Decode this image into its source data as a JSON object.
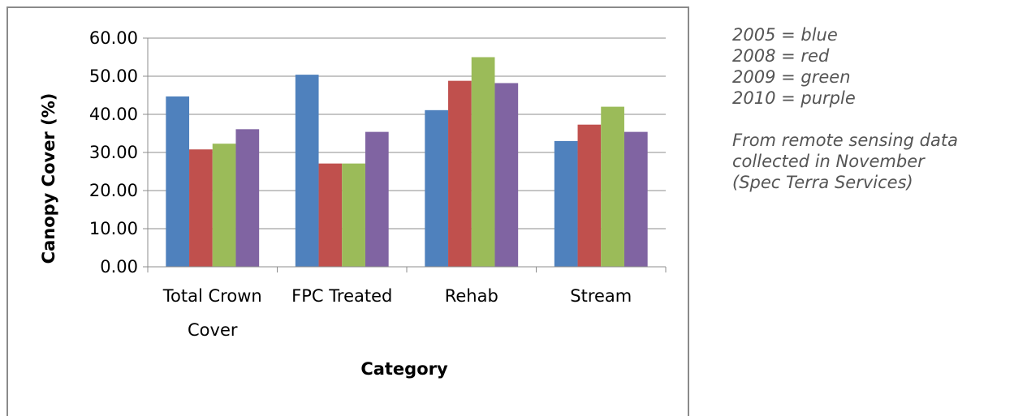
{
  "chart_data": {
    "type": "bar",
    "categories": [
      "Total Crown Cover",
      "FPC Treated",
      "Rehab",
      "Stream"
    ],
    "category_label_lines": [
      [
        "Total Crown",
        "Cover"
      ],
      [
        "FPC Treated"
      ],
      [
        "Rehab"
      ],
      [
        "Stream"
      ]
    ],
    "series": [
      {
        "values": [
          44.7,
          50.4,
          41.1,
          33.0
        ],
        "color": "#4f81bd"
      },
      {
        "values": [
          30.8,
          27.1,
          48.8,
          37.3
        ],
        "color": "#c0504d"
      },
      {
        "values": [
          32.3,
          27.1,
          55.0,
          42.0
        ],
        "color": "#9bbb59"
      },
      {
        "values": [
          36.1,
          35.4,
          48.2,
          35.4
        ],
        "color": "#8064a2"
      }
    ],
    "xlabel": "Category",
    "ylabel": "Canopy Cover (%)",
    "ylim": [
      0,
      60
    ],
    "yticks": [
      0,
      10,
      20,
      30,
      40,
      50,
      60
    ],
    "ytick_labels": [
      "0.00",
      "10.00",
      "20.00",
      "30.00",
      "40.00",
      "50.00",
      "60.00"
    ],
    "grid": true,
    "legend": false
  },
  "notes": {
    "legend_lines": [
      "2005 = blue",
      "2008 = red",
      "2009 = green",
      "2010 = purple"
    ],
    "source_lines": [
      "From remote sensing data",
      "collected in November",
      "(Spec Terra Services)"
    ]
  }
}
